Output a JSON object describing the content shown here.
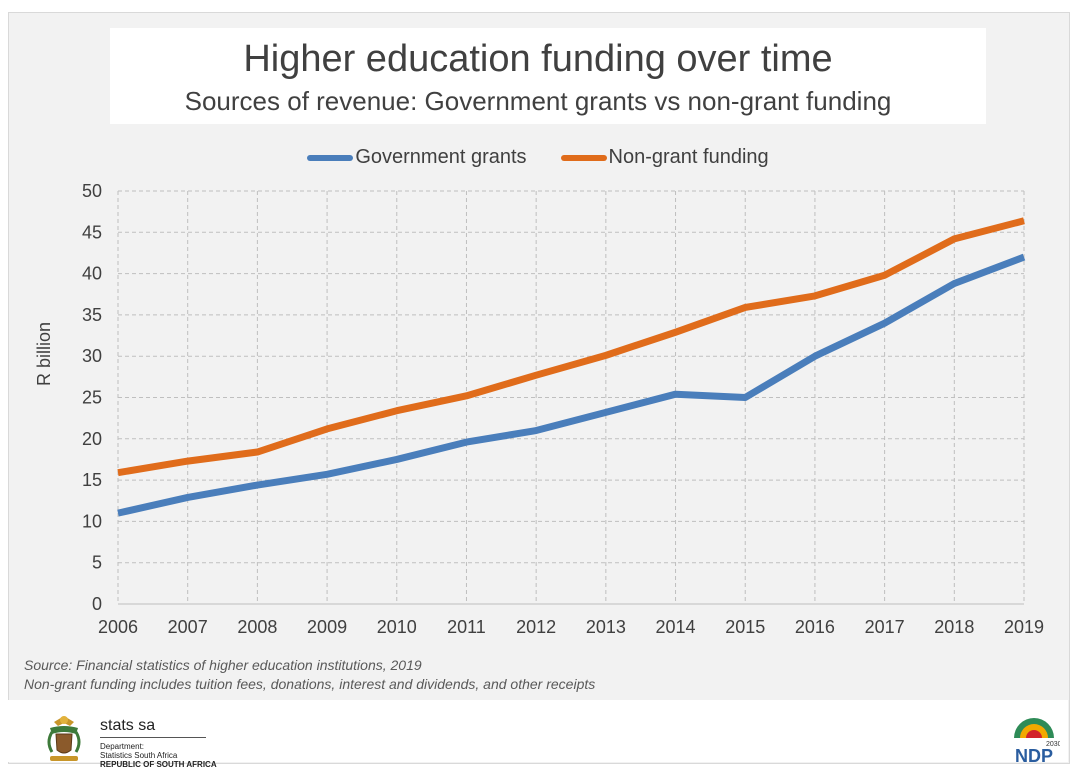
{
  "header": {
    "title": "Higher education funding over time",
    "subtitle": "Sources of revenue: Government grants vs non-grant funding"
  },
  "chart_data": {
    "type": "line",
    "title": "Higher education funding over time",
    "subtitle": "Sources of revenue: Government grants vs non-grant funding",
    "xlabel": "",
    "ylabel": "R billion",
    "x": [
      "2006",
      "2007",
      "2008",
      "2009",
      "2010",
      "2011",
      "2012",
      "2013",
      "2014",
      "2015",
      "2016",
      "2017",
      "2018",
      "2019"
    ],
    "ylim": [
      0,
      50
    ],
    "yticks": [
      0,
      5,
      10,
      15,
      20,
      25,
      30,
      35,
      40,
      45,
      50
    ],
    "grid": true,
    "legend_position": "top-center",
    "series": [
      {
        "name": "Government grants",
        "color": "#4a7ebb",
        "values": [
          11.0,
          12.9,
          14.4,
          15.7,
          17.5,
          19.6,
          21.0,
          23.2,
          25.4,
          25.0,
          30.0,
          34.0,
          38.8,
          42.0
        ]
      },
      {
        "name": "Non-grant funding",
        "color": "#e06c1b",
        "values": [
          15.9,
          17.3,
          18.4,
          21.2,
          23.4,
          25.2,
          27.7,
          30.1,
          32.9,
          35.9,
          37.3,
          39.8,
          44.2,
          46.4
        ]
      }
    ]
  },
  "notes": {
    "source": "Source: Financial statistics of higher education institutions, 2019",
    "footnote": "Non-grant funding includes tuition fees, donations, interest and dividends, and other receipts"
  },
  "footer": {
    "org_name": "stats sa",
    "dept_line1": "Department:",
    "dept_line2": "Statistics South Africa",
    "dept_line3": "REPUBLIC OF SOUTH AFRICA",
    "ndp_text": "NDP",
    "ndp_year": "2030"
  }
}
